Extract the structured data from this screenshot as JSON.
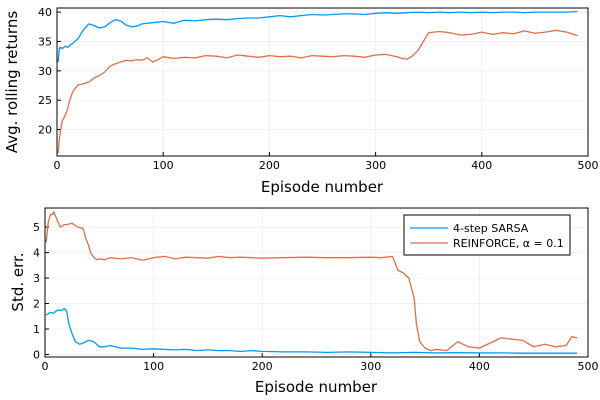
{
  "colors": {
    "sarsa": "#009AFA",
    "reinforce": "#E26F46"
  },
  "chart_data": [
    {
      "type": "line",
      "xlabel": "Episode number",
      "ylabel": "Avg. rolling returns",
      "xlim": [
        0,
        500
      ],
      "ylim": [
        15.5,
        40.7
      ],
      "xticks": [
        0,
        100,
        200,
        300,
        400,
        500
      ],
      "yticks": [
        20,
        25,
        30,
        35,
        40
      ],
      "grid": true,
      "series": [
        {
          "key": "sarsa",
          "x": [
            1,
            2,
            3,
            5,
            8,
            10,
            15,
            20,
            25,
            28,
            30,
            35,
            40,
            45,
            50,
            55,
            60,
            65,
            70,
            75,
            80,
            90,
            100,
            110,
            120,
            130,
            140,
            150,
            160,
            170,
            180,
            190,
            200,
            210,
            220,
            230,
            240,
            250,
            260,
            270,
            280,
            290,
            300,
            310,
            320,
            330,
            340,
            350,
            360,
            370,
            380,
            390,
            400,
            410,
            420,
            430,
            440,
            450,
            460,
            470,
            480,
            490
          ],
          "y": [
            31.5,
            33.5,
            34,
            33.8,
            34.2,
            34,
            34.7,
            35.5,
            37,
            37.6,
            38,
            37.7,
            37.3,
            37.5,
            38.2,
            38.7,
            38.5,
            37.8,
            37.5,
            37.6,
            38,
            38.2,
            38.4,
            38.1,
            38.6,
            38.5,
            38.7,
            38.8,
            38.7,
            38.9,
            39,
            39,
            39.2,
            39.4,
            39.2,
            39.4,
            39.6,
            39.5,
            39.6,
            39.7,
            39.7,
            39.6,
            39.8,
            39.9,
            39.8,
            39.9,
            40,
            39.9,
            40,
            39.9,
            40,
            39.9,
            40,
            39.9,
            40,
            40,
            39.9,
            40,
            40,
            40,
            40,
            40.1
          ]
        },
        {
          "key": "reinforce",
          "x": [
            1,
            2,
            3,
            5,
            8,
            10,
            12,
            15,
            18,
            20,
            25,
            30,
            35,
            40,
            45,
            50,
            55,
            60,
            65,
            70,
            75,
            80,
            85,
            90,
            95,
            100,
            110,
            120,
            130,
            140,
            150,
            160,
            170,
            180,
            190,
            200,
            210,
            220,
            230,
            240,
            250,
            260,
            270,
            280,
            290,
            300,
            310,
            320,
            325,
            330,
            335,
            340,
            345,
            350,
            360,
            370,
            380,
            390,
            400,
            410,
            420,
            430,
            440,
            450,
            460,
            470,
            480,
            490
          ],
          "y": [
            16,
            18,
            19.5,
            21.5,
            22.5,
            23.5,
            25,
            26.5,
            27.2,
            27.6,
            27.8,
            28.1,
            28.8,
            29.2,
            29.8,
            30.8,
            31.2,
            31.5,
            31.8,
            31.7,
            31.9,
            31.8,
            32.2,
            31.5,
            31.9,
            32.4,
            32.1,
            32.3,
            32.2,
            32.6,
            32.5,
            32.2,
            32.7,
            32.5,
            32.3,
            32.6,
            32.4,
            32.5,
            32.2,
            32.6,
            32.5,
            32.4,
            32.6,
            32.5,
            32.3,
            32.7,
            32.8,
            32.4,
            32.1,
            32,
            32.6,
            33.5,
            35,
            36.5,
            36.7,
            36.5,
            36.1,
            36.2,
            36.6,
            36.2,
            36.5,
            36.3,
            36.8,
            36.4,
            36.6,
            36.9,
            36.6,
            36
          ]
        }
      ]
    },
    {
      "type": "line",
      "xlabel": "Episode number",
      "ylabel": "Std. err.",
      "xlim": [
        0,
        500
      ],
      "ylim": [
        -0.1,
        5.75
      ],
      "xticks": [
        0,
        100,
        200,
        300,
        400,
        500
      ],
      "yticks": [
        0,
        1,
        2,
        3,
        4,
        5
      ],
      "grid": true,
      "legend": {
        "position": "top-right",
        "entries": [
          {
            "key": "sarsa",
            "label": "4-step SARSA"
          },
          {
            "key": "reinforce",
            "label": "REINFORCE, α = 0.1"
          }
        ]
      },
      "series": [
        {
          "key": "sarsa",
          "x": [
            1,
            3,
            5,
            8,
            10,
            12,
            15,
            18,
            20,
            22,
            25,
            28,
            30,
            32,
            35,
            40,
            45,
            50,
            55,
            60,
            65,
            70,
            80,
            90,
            100,
            110,
            120,
            130,
            140,
            150,
            160,
            170,
            180,
            190,
            200,
            220,
            240,
            260,
            280,
            300,
            320,
            340,
            360,
            380,
            400,
            420,
            440,
            460,
            480,
            490
          ],
          "y": [
            1.55,
            1.6,
            1.65,
            1.62,
            1.7,
            1.75,
            1.72,
            1.8,
            1.7,
            1.2,
            0.8,
            0.5,
            0.45,
            0.4,
            0.45,
            0.55,
            0.5,
            0.3,
            0.3,
            0.35,
            0.3,
            0.25,
            0.25,
            0.2,
            0.22,
            0.2,
            0.18,
            0.2,
            0.15,
            0.18,
            0.15,
            0.15,
            0.12,
            0.15,
            0.12,
            0.1,
            0.1,
            0.08,
            0.1,
            0.08,
            0.06,
            0.08,
            0.06,
            0.07,
            0.06,
            0.06,
            0.05,
            0.05,
            0.05,
            0.05
          ]
        },
        {
          "key": "reinforce",
          "x": [
            1,
            2,
            3,
            5,
            7,
            8,
            10,
            12,
            14,
            16,
            18,
            20,
            25,
            30,
            35,
            38,
            40,
            42,
            45,
            48,
            50,
            55,
            60,
            70,
            80,
            90,
            100,
            110,
            120,
            130,
            140,
            150,
            160,
            170,
            180,
            190,
            200,
            220,
            240,
            260,
            280,
            300,
            310,
            320,
            325,
            330,
            335,
            340,
            342,
            345,
            350,
            355,
            360,
            370,
            380,
            390,
            400,
            410,
            420,
            430,
            440,
            450,
            460,
            470,
            480,
            485,
            490
          ],
          "y": [
            4.4,
            4.8,
            5.2,
            5.5,
            5.5,
            5.6,
            5.4,
            5.2,
            5.0,
            5.05,
            5.1,
            5.1,
            5.15,
            5.0,
            4.95,
            4.5,
            4.3,
            4.0,
            3.8,
            3.72,
            3.75,
            3.72,
            3.8,
            3.75,
            3.8,
            3.7,
            3.8,
            3.85,
            3.75,
            3.82,
            3.8,
            3.78,
            3.85,
            3.8,
            3.82,
            3.8,
            3.78,
            3.8,
            3.82,
            3.8,
            3.8,
            3.82,
            3.8,
            3.85,
            3.3,
            3.2,
            3.0,
            2.2,
            1.2,
            0.5,
            0.25,
            0.15,
            0.2,
            0.15,
            0.5,
            0.3,
            0.25,
            0.45,
            0.65,
            0.6,
            0.55,
            0.3,
            0.4,
            0.3,
            0.35,
            0.7,
            0.65
          ]
        }
      ]
    }
  ]
}
